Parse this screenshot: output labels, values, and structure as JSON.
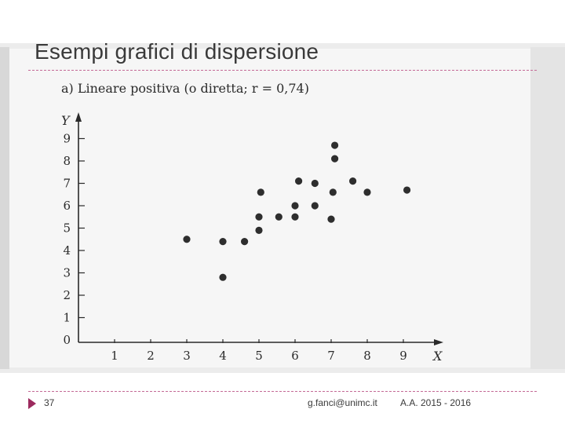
{
  "slide": {
    "title": "Esempi grafici di dispersione",
    "page_number": "37",
    "email": "g.fanci@unimc.it",
    "academic_year": "A.A. 2015 - 2016",
    "accent_color": "#9c2a5e",
    "rule_color": "#c46a96"
  },
  "chart_data": {
    "type": "scatter",
    "title": "a) Lineare positiva (o diretta; r = 0,74)",
    "xlabel": "X",
    "ylabel": "Y",
    "xlim": [
      0,
      9.5
    ],
    "ylim": [
      0,
      10
    ],
    "x_ticks": [
      "1",
      "2",
      "3",
      "4",
      "5",
      "6",
      "7",
      "8",
      "9"
    ],
    "y_ticks": [
      "0",
      "1",
      "2",
      "3",
      "4",
      "5",
      "6",
      "7",
      "8",
      "9"
    ],
    "grid": false,
    "points": [
      {
        "x": 3.0,
        "y": 4.5
      },
      {
        "x": 4.0,
        "y": 4.4
      },
      {
        "x": 4.0,
        "y": 2.8
      },
      {
        "x": 4.6,
        "y": 4.4
      },
      {
        "x": 5.0,
        "y": 4.9
      },
      {
        "x": 5.0,
        "y": 5.5
      },
      {
        "x": 5.05,
        "y": 6.6
      },
      {
        "x": 5.55,
        "y": 5.5
      },
      {
        "x": 6.0,
        "y": 5.5
      },
      {
        "x": 6.0,
        "y": 6.0
      },
      {
        "x": 6.1,
        "y": 7.1
      },
      {
        "x": 6.55,
        "y": 6.0
      },
      {
        "x": 6.55,
        "y": 7.0
      },
      {
        "x": 7.0,
        "y": 5.4
      },
      {
        "x": 7.05,
        "y": 6.6
      },
      {
        "x": 7.1,
        "y": 8.1
      },
      {
        "x": 7.1,
        "y": 8.7
      },
      {
        "x": 7.6,
        "y": 7.1
      },
      {
        "x": 8.0,
        "y": 6.6
      },
      {
        "x": 9.1,
        "y": 6.7
      }
    ]
  }
}
